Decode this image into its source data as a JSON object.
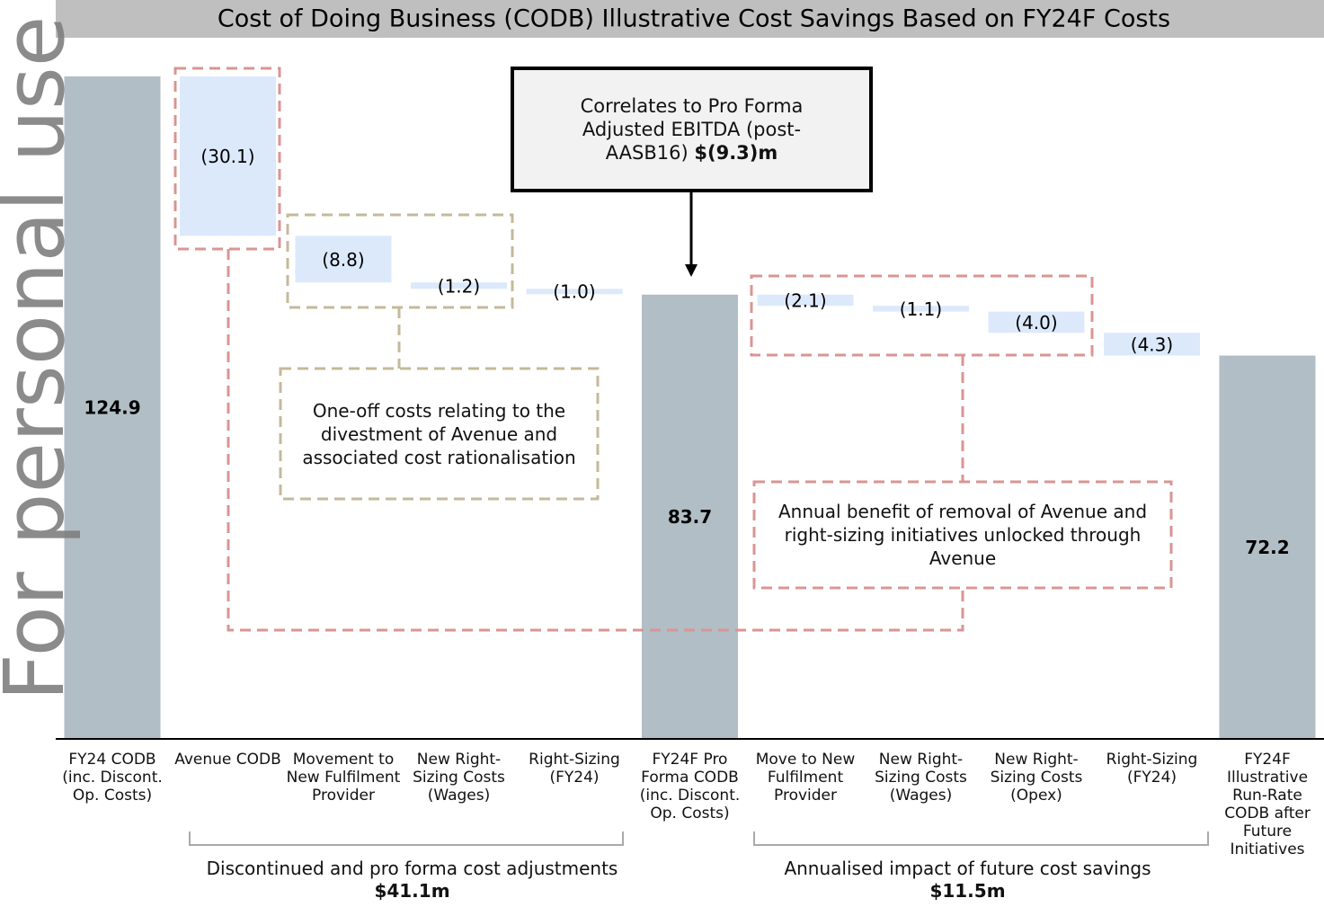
{
  "chart_data": {
    "type": "waterfall",
    "title": "Cost of Doing Business (CODB) Illustrative Cost Savings Based on FY24F Costs",
    "categories": [
      "FY24 CODB (inc. Discont. Op. Costs)",
      "Avenue CODB",
      "Movement to New Fulfilment Provider",
      "New Right-Sizing Costs (Wages)",
      "Right-Sizing (FY24)",
      "FY24F Pro Forma CODB (inc. Discont. Op. Costs)",
      "Move to New Fulfilment Provider",
      "New Right-Sizing Costs (Wages)",
      "New Right-Sizing Costs (Opex)",
      "Right-Sizing (FY24)",
      "FY24F Illustrative Run-Rate CODB after Future Initiatives"
    ],
    "values": [
      124.9,
      -30.1,
      -8.8,
      -1.2,
      -1.0,
      83.7,
      -2.1,
      -1.1,
      -4.0,
      -4.3,
      72.2
    ],
    "value_labels": [
      "124.9",
      "(30.1)",
      "(8.8)",
      "(1.2)",
      "(1.0)",
      "83.7",
      "(2.1)",
      "(1.1)",
      "(4.0)",
      "(4.3)",
      "72.2"
    ],
    "totals": [
      true,
      false,
      false,
      false,
      false,
      true,
      false,
      false,
      false,
      false,
      true
    ],
    "total_color": "#b1bec5",
    "change_color": "#dce9fb",
    "groups": [
      {
        "label": "Discontinued and pro forma cost adjustments",
        "amount": "$41.1m"
      },
      {
        "label": "Annualised impact of future cost savings",
        "amount": "$11.5m"
      }
    ],
    "callout": {
      "text": "Correlates to Pro Forma Adjusted EBITDA (post-AASB16)",
      "emphasis": "$(9.3)m"
    },
    "annotations": [
      "One-off costs relating to the divestment of Avenue and associated cost rationalisation",
      "Annual benefit of removal of Avenue and right-sizing initiatives unlocked through Avenue"
    ]
  },
  "watermark": "For personal use only"
}
